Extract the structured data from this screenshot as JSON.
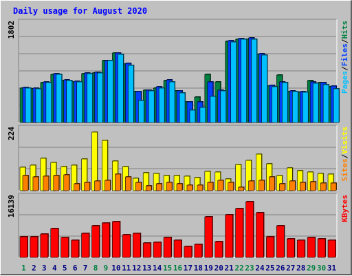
{
  "chart_data": {
    "type": "bar",
    "title": "Daily usage for August 2020",
    "categories": [
      "1",
      "2",
      "3",
      "4",
      "5",
      "6",
      "7",
      "8",
      "9",
      "10",
      "11",
      "12",
      "13",
      "14",
      "15",
      "16",
      "17",
      "18",
      "19",
      "20",
      "21",
      "22",
      "23",
      "24",
      "25",
      "26",
      "27",
      "28",
      "29",
      "30",
      "31"
    ],
    "weekend_days": [
      "1",
      "8",
      "9",
      "15",
      "16",
      "22",
      "23",
      "29",
      "30"
    ],
    "panels": [
      {
        "name": "top",
        "max_label": "1802",
        "ylim": [
          0,
          1802
        ],
        "series": [
          {
            "name": "Hits",
            "color": "#008040",
            "values": [
              620,
              610,
              720,
              880,
              760,
              740,
              890,
              900,
              1120,
              1260,
              1060,
              560,
              590,
              630,
              760,
              570,
              370,
              460,
              880,
              740,
              1480,
              1510,
              1520,
              1240,
              660,
              860,
              560,
              550,
              760,
              730,
              650
            ]
          },
          {
            "name": "Files",
            "color": "#0040ff",
            "values": [
              640,
              630,
              740,
              890,
              770,
              750,
              900,
              910,
              1130,
              1270,
              1070,
              560,
              590,
              650,
              770,
              570,
              370,
              370,
              740,
              590,
              1490,
              1530,
              1540,
              1250,
              680,
              740,
              570,
              560,
              740,
              720,
              660
            ]
          },
          {
            "name": "Pages",
            "color": "#00c0ff",
            "values": [
              620,
              610,
              720,
              880,
              760,
              740,
              890,
              900,
              1120,
              1240,
              1040,
              400,
              570,
              630,
              740,
              540,
              220,
              270,
              470,
              570,
              1470,
              1510,
              1520,
              1230,
              650,
              720,
              560,
              550,
              710,
              690,
              610
            ]
          }
        ],
        "legend_order": [
          "Pages",
          "Files",
          "Hits"
        ]
      },
      {
        "name": "middle",
        "max_label": "224",
        "ylim": [
          0,
          224
        ],
        "series": [
          {
            "name": "Visits",
            "color": "#ffff00",
            "values": [
              85,
              94,
              118,
              102,
              88,
              94,
              117,
              215,
              183,
              107,
              87,
              46,
              65,
              63,
              56,
              56,
              52,
              48,
              70,
              67,
              42,
              95,
              110,
              134,
              98,
              55,
              84,
              73,
              69,
              63,
              60
            ]
          },
          {
            "name": "Sites",
            "color": "#ff8000",
            "values": [
              55,
              50,
              54,
              55,
              59,
              25,
              30,
              35,
              38,
              61,
              50,
              30,
              17,
              26,
              30,
              25,
              20,
              20,
              30,
              38,
              30,
              12,
              35,
              38,
              50,
              25,
              34,
              30,
              33,
              27,
              27
            ]
          }
        ],
        "legend_order": [
          "Sites",
          "Visits"
        ]
      },
      {
        "name": "bottom",
        "max_label": "16139",
        "ylim": [
          0,
          16139
        ],
        "series": [
          {
            "name": "KBytes",
            "color": "#ff0000",
            "values": [
              5600,
              5600,
              6300,
              7800,
              5400,
              4600,
              6400,
              8600,
              9200,
              9600,
              6100,
              6500,
              3900,
              4100,
              5300,
              4600,
              3000,
              3600,
              11000,
              4200,
              11500,
              13200,
              15000,
              12000,
              5500,
              8500,
              5100,
              4700,
              5400,
              5100,
              4600
            ]
          }
        ],
        "legend_order": [
          "KBytes"
        ]
      }
    ],
    "colors": {
      "background": "#c0c0c0",
      "plot": "#c0c0c0",
      "title": "#0000ff",
      "weekday_label": "#008040",
      "weekend_label": "#000080",
      "grid": "#808080"
    }
  }
}
